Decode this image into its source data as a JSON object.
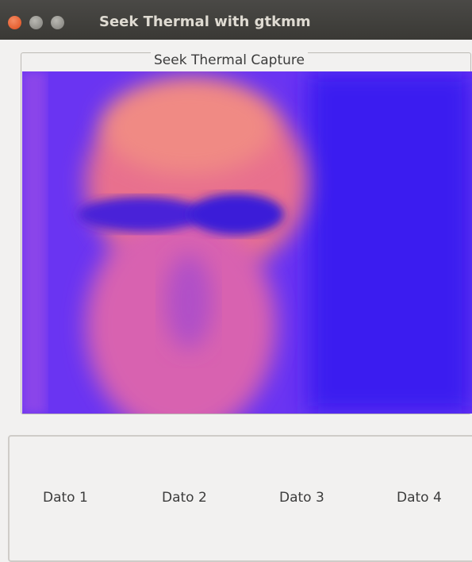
{
  "window": {
    "title": "Seek Thermal with gtkmm"
  },
  "frame": {
    "label": "Seek Thermal Capture"
  },
  "labels": [
    "Dato 1",
    "Dato 2",
    "Dato 3",
    "Dato 4"
  ]
}
